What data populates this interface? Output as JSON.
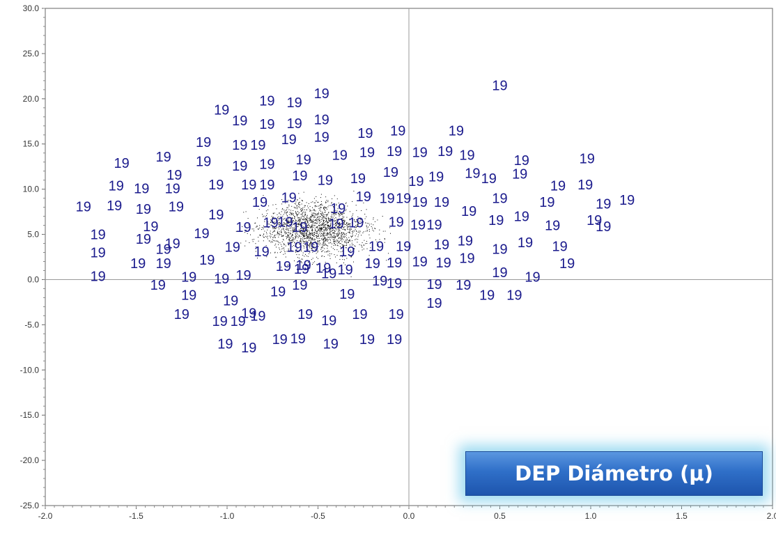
{
  "colors": {
    "label": "#1a1a8c",
    "points": "#000000",
    "axis": "#999999",
    "frame": "#666666"
  },
  "banner": {
    "text": "DEP Diámetro (μ)"
  },
  "chart_data": {
    "type": "scatter",
    "title": "",
    "xlabel": "",
    "ylabel": "",
    "xlim": [
      -2.0,
      2.0
    ],
    "ylim": [
      -25.0,
      30.0
    ],
    "grid": false,
    "reference_lines": {
      "x": 0.0,
      "y": 0.0
    },
    "x_ticks": [
      "-2.0",
      "-1.5",
      "-1.0",
      "-0.5",
      "0.0",
      "0.5",
      "1.0",
      "1.5",
      "2.0"
    ],
    "y_ticks": [
      "30.0",
      "25.0",
      "20.0",
      "15.0",
      "10.0",
      "5.0",
      "0.0",
      "-5.0",
      "-10.0",
      "-15.0",
      "-20.0",
      "-25.0"
    ],
    "point_label": "19",
    "series": [
      {
        "markers": "labels",
        "points": [
          [
            0.5,
            21.5
          ],
          [
            -0.48,
            20.6
          ],
          [
            -0.63,
            19.6
          ],
          [
            -0.78,
            19.8
          ],
          [
            -1.03,
            18.8
          ],
          [
            -0.93,
            17.6
          ],
          [
            -0.78,
            17.2
          ],
          [
            -0.63,
            17.3
          ],
          [
            -0.48,
            17.7
          ],
          [
            -0.66,
            15.5
          ],
          [
            -0.48,
            15.8
          ],
          [
            -0.83,
            14.9
          ],
          [
            -0.93,
            14.9
          ],
          [
            -1.13,
            15.2
          ],
          [
            -0.24,
            16.2
          ],
          [
            -0.06,
            16.5
          ],
          [
            0.26,
            16.5
          ],
          [
            -1.58,
            12.9
          ],
          [
            -1.35,
            13.6
          ],
          [
            -1.13,
            13.1
          ],
          [
            -0.93,
            12.6
          ],
          [
            -0.78,
            12.8
          ],
          [
            -0.58,
            13.3
          ],
          [
            -0.38,
            13.8
          ],
          [
            -0.23,
            14.1
          ],
          [
            -0.08,
            14.2
          ],
          [
            0.06,
            14.1
          ],
          [
            0.2,
            14.2
          ],
          [
            0.32,
            13.8
          ],
          [
            0.62,
            13.2
          ],
          [
            0.98,
            13.4
          ],
          [
            -1.29,
            11.6
          ],
          [
            -1.61,
            10.4
          ],
          [
            -1.47,
            10.1
          ],
          [
            -1.3,
            10.1
          ],
          [
            -1.06,
            10.5
          ],
          [
            -0.88,
            10.5
          ],
          [
            -0.78,
            10.5
          ],
          [
            -0.6,
            11.5
          ],
          [
            -0.46,
            11.0
          ],
          [
            -0.28,
            11.2
          ],
          [
            -0.1,
            11.9
          ],
          [
            0.04,
            10.9
          ],
          [
            0.15,
            11.4
          ],
          [
            0.35,
            11.8
          ],
          [
            0.44,
            11.2
          ],
          [
            0.61,
            11.7
          ],
          [
            0.82,
            10.4
          ],
          [
            0.97,
            10.5
          ],
          [
            -1.79,
            8.1
          ],
          [
            -1.62,
            8.2
          ],
          [
            -1.46,
            7.8
          ],
          [
            -1.28,
            8.1
          ],
          [
            -1.06,
            7.2
          ],
          [
            -0.82,
            8.6
          ],
          [
            -0.66,
            9.1
          ],
          [
            -0.39,
            7.9
          ],
          [
            -0.25,
            9.2
          ],
          [
            -0.12,
            9.0
          ],
          [
            -0.03,
            9.0
          ],
          [
            0.06,
            8.6
          ],
          [
            0.18,
            8.6
          ],
          [
            0.33,
            7.6
          ],
          [
            0.5,
            9.0
          ],
          [
            0.76,
            8.6
          ],
          [
            1.02,
            6.6
          ],
          [
            1.07,
            8.4
          ],
          [
            1.2,
            8.8
          ],
          [
            -1.71,
            5.0
          ],
          [
            -1.42,
            5.9
          ],
          [
            -1.3,
            4.0
          ],
          [
            -1.14,
            5.1
          ],
          [
            -0.91,
            5.8
          ],
          [
            -0.76,
            6.3
          ],
          [
            -0.68,
            6.4
          ],
          [
            -0.6,
            5.8
          ],
          [
            -0.4,
            6.2
          ],
          [
            -0.29,
            6.3
          ],
          [
            -0.07,
            6.4
          ],
          [
            0.05,
            6.1
          ],
          [
            0.14,
            6.1
          ],
          [
            0.48,
            6.6
          ],
          [
            0.62,
            7.0
          ],
          [
            0.79,
            6.0
          ],
          [
            1.07,
            5.9
          ],
          [
            -1.71,
            3.0
          ],
          [
            -1.46,
            4.5
          ],
          [
            -1.35,
            3.4
          ],
          [
            -0.97,
            3.6
          ],
          [
            -0.81,
            3.1
          ],
          [
            -0.63,
            3.6
          ],
          [
            -0.54,
            3.6
          ],
          [
            -0.34,
            3.1
          ],
          [
            -0.18,
            3.7
          ],
          [
            -0.03,
            3.7
          ],
          [
            0.18,
            3.9
          ],
          [
            0.31,
            4.3
          ],
          [
            0.5,
            3.4
          ],
          [
            0.64,
            4.1
          ],
          [
            0.83,
            3.7
          ],
          [
            -1.49,
            1.8
          ],
          [
            -1.35,
            1.8
          ],
          [
            -1.11,
            2.2
          ],
          [
            -0.69,
            1.5
          ],
          [
            -0.58,
            1.6
          ],
          [
            -0.47,
            1.3
          ],
          [
            -0.35,
            1.1
          ],
          [
            -0.2,
            1.8
          ],
          [
            -0.08,
            1.9
          ],
          [
            0.06,
            2.0
          ],
          [
            0.19,
            1.9
          ],
          [
            0.32,
            2.4
          ],
          [
            0.87,
            1.8
          ],
          [
            -1.71,
            0.4
          ],
          [
            -1.21,
            0.3
          ],
          [
            -1.03,
            0.1
          ],
          [
            -0.91,
            0.5
          ],
          [
            -0.59,
            1.2
          ],
          [
            -0.44,
            0.7
          ],
          [
            -0.16,
            -0.1
          ],
          [
            -0.08,
            -0.4
          ],
          [
            0.5,
            0.8
          ],
          [
            0.68,
            0.3
          ],
          [
            -1.38,
            -0.6
          ],
          [
            -1.21,
            -1.7
          ],
          [
            -0.98,
            -2.3
          ],
          [
            -0.72,
            -1.3
          ],
          [
            -0.6,
            -0.6
          ],
          [
            -0.34,
            -1.6
          ],
          [
            0.14,
            -0.5
          ],
          [
            0.3,
            -0.6
          ],
          [
            0.43,
            -1.7
          ],
          [
            0.58,
            -1.7
          ],
          [
            -1.25,
            -3.8
          ],
          [
            -1.04,
            -4.6
          ],
          [
            -0.94,
            -4.6
          ],
          [
            -0.83,
            -4.0
          ],
          [
            -0.57,
            -3.8
          ],
          [
            -0.44,
            -4.5
          ],
          [
            -0.27,
            -3.8
          ],
          [
            -0.07,
            -3.8
          ],
          [
            0.14,
            -2.6
          ],
          [
            -1.01,
            -7.1
          ],
          [
            -0.88,
            -7.5
          ],
          [
            -0.71,
            -6.6
          ],
          [
            -0.61,
            -6.5
          ],
          [
            -0.43,
            -7.1
          ],
          [
            -0.23,
            -6.6
          ],
          [
            -0.08,
            -6.6
          ],
          [
            -0.88,
            -3.7
          ]
        ]
      }
    ]
  }
}
